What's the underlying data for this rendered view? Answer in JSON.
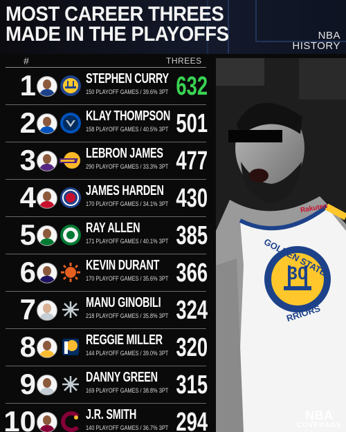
{
  "header": {
    "title_line1": "MOST CAREER THREES",
    "title_line2": "MADE IN THE PLAYOFFS",
    "history_line1": "NBA",
    "history_line2": "HISTORY"
  },
  "table": {
    "rank_header": "#",
    "value_header": "THREES",
    "highlight_color": "#39d353",
    "rows": [
      {
        "rank": "1",
        "name": "STEPHEN CURRY",
        "stats": "150 PLAYOFF GAMES / 39.6% 3PT",
        "value": "632",
        "team_logo": "warriors-logo",
        "team_color": "#1d428a",
        "team_accent": "#ffc72c"
      },
      {
        "rank": "2",
        "name": "KLAY THOMPSON",
        "stats": "158 PLAYOFF GAMES / 40.5% 3PT",
        "value": "501",
        "team_logo": "mavericks-logo",
        "team_color": "#0053bc",
        "team_accent": "#bbc4ca"
      },
      {
        "rank": "3",
        "name": "LEBRON JAMES",
        "stats": "290 PLAYOFF GAMES / 33.3% 3PT",
        "value": "477",
        "team_logo": "lakers-logo",
        "team_color": "#552583",
        "team_accent": "#fdb927"
      },
      {
        "rank": "4",
        "name": "JAMES HARDEN",
        "stats": "170 PLAYOFF GAMES / 34.1% 3PT",
        "value": "430",
        "team_logo": "clippers-logo",
        "team_color": "#1d428a",
        "team_accent": "#c8102e"
      },
      {
        "rank": "5",
        "name": "RAY ALLEN",
        "stats": "171 PLAYOFF GAMES / 40.1% 3PT",
        "value": "385",
        "team_logo": "celtics-logo",
        "team_color": "#007a33",
        "team_accent": "#ffffff"
      },
      {
        "rank": "6",
        "name": "KEVIN DURANT",
        "stats": "170 PLAYOFF GAMES / 35.6% 3PT",
        "value": "366",
        "team_logo": "suns-logo",
        "team_color": "#e56020",
        "team_accent": "#1d1160"
      },
      {
        "rank": "7",
        "name": "MANU GINOBILI",
        "stats": "218 PLAYOFF GAMES / 35.8% 3PT",
        "value": "324",
        "team_logo": "spurs-logo",
        "team_color": "#c4ced4",
        "team_accent": "#000000"
      },
      {
        "rank": "8",
        "name": "REGGIE MILLER",
        "stats": "144 PLAYOFF GAMES / 39.0% 3PT",
        "value": "320",
        "team_logo": "pacers-logo",
        "team_color": "#002d62",
        "team_accent": "#fdbb30"
      },
      {
        "rank": "9",
        "name": "DANNY GREEN",
        "stats": "169 PLAYOFF GAMES / 38.8% 3PT",
        "value": "315",
        "team_logo": "spurs-logo",
        "team_color": "#c4ced4",
        "team_accent": "#000000"
      },
      {
        "rank": "10",
        "name": "J.R. SMITH",
        "stats": "140 PLAYOFF GAMES / 36.7% 3PT",
        "value": "294",
        "team_logo": "cavaliers-logo",
        "team_color": "#860038",
        "team_accent": "#fdbb30"
      }
    ]
  },
  "photo": {
    "jersey_text": "GOLDEN STATE",
    "jersey_bottom": "RRIORS",
    "number": "30",
    "sponsor": "Rakuten",
    "jersey_color": "#1d428a",
    "accent_color": "#ffc72c"
  },
  "badge": {
    "line1": "NBA",
    "line2": "COVERAGE"
  }
}
